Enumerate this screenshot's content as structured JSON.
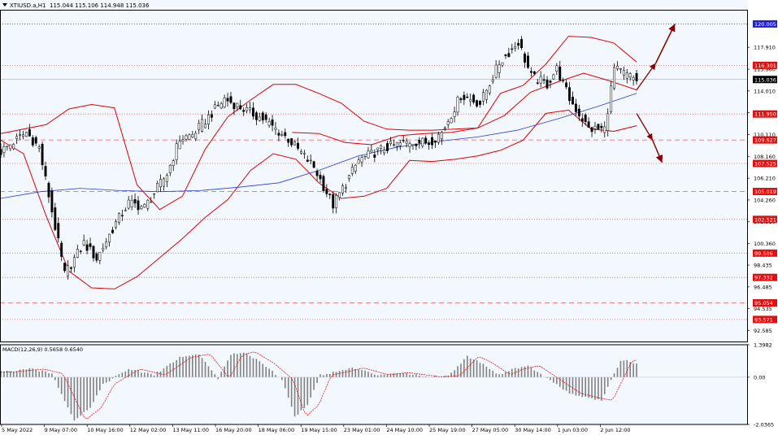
{
  "header": {
    "symbol": "XTIUSD.a,H1",
    "ohlc": "115.044 115.106 114.948 115.036"
  },
  "colors": {
    "background": "#f3f8fe",
    "frame": "#000000",
    "candles": "#000000",
    "bollinger": "#e00000",
    "moving_average": "#2a3bd6",
    "level_line": "#e06060",
    "arrow": "#8b0000",
    "current_price_tag": "#000000",
    "top_level_tag": "#2222cc",
    "level_tag": "#dd1111",
    "macd_hist": "#808080",
    "macd_signal": "#e00000"
  },
  "chart_data": [
    {
      "type": "candlestick",
      "title": "XTIUSD.a,H1",
      "ylim": [
        91.6,
        121.2
      ],
      "price_ticks": [
        "117.910",
        "115.960",
        "114.010",
        "112.060",
        "110.110",
        "108.160",
        "106.210",
        "104.260",
        "102.310",
        "100.360",
        "98.435",
        "96.485",
        "94.535",
        "92.585"
      ],
      "price_tick_values": [
        117.91,
        115.96,
        114.01,
        112.06,
        110.11,
        108.16,
        106.21,
        104.26,
        102.31,
        100.36,
        98.435,
        96.485,
        94.535,
        92.585
      ],
      "current_price": {
        "label": "115.036",
        "value": 115.036
      },
      "levels": [
        {
          "label": "120.005",
          "value": 120.005,
          "style": "dotted",
          "tag": "top"
        },
        {
          "label": "116.301",
          "value": 116.301,
          "style": "dotted",
          "tag": "level"
        },
        {
          "label": "111.950",
          "value": 111.95,
          "style": "dotted",
          "tag": "level"
        },
        {
          "label": "109.627",
          "value": 109.627,
          "style": "dashed",
          "tag": "level"
        },
        {
          "label": "107.525",
          "value": 107.525,
          "style": "dotted",
          "tag": "level"
        },
        {
          "label": "105.019",
          "value": 105.019,
          "style": "dashed",
          "tag": "level"
        },
        {
          "label": "102.521",
          "value": 102.521,
          "style": "dotted",
          "tag": "level"
        },
        {
          "label": "99.506",
          "value": 99.506,
          "style": "dotted",
          "tag": "level"
        },
        {
          "label": "97.332",
          "value": 97.332,
          "style": "dotted",
          "tag": "level"
        },
        {
          "label": "95.054",
          "value": 95.054,
          "style": "dashed",
          "tag": "level"
        },
        {
          "label": "93.571",
          "value": 93.571,
          "style": "dotted",
          "tag": "level"
        }
      ],
      "time_labels": [
        "5 May 2022",
        "9 May 07:00",
        "10 May 16:00",
        "12 May 02:00",
        "13 May 11:00",
        "16 May 20:00",
        "18 May 06:00",
        "19 May 15:00",
        "23 May 01:00",
        "24 May 10:00",
        "25 May 19:00",
        "27 May 05:00",
        "30 May 14:00",
        "1 Jun 03:00",
        "2 Jun 12:00"
      ],
      "bars": 200,
      "price_path_x": [
        0,
        8,
        12,
        20,
        26,
        30,
        36,
        40,
        45,
        52,
        56,
        60,
        70,
        82,
        90,
        98,
        104,
        112,
        120,
        128,
        134,
        138,
        144,
        150,
        156,
        162,
        166,
        171,
        174,
        178,
        184,
        189,
        192,
        199
      ],
      "price_path_y": [
        108.6,
        110.3,
        108.9,
        97.6,
        100.4,
        99.0,
        102.2,
        104.0,
        103.6,
        106.6,
        109.7,
        110.1,
        113.3,
        111.5,
        109.7,
        107.2,
        103.8,
        107.8,
        108.9,
        109.5,
        109.4,
        110.3,
        113.6,
        112.9,
        116.5,
        118.4,
        115.3,
        114.6,
        116.0,
        113.3,
        110.6,
        110.6,
        116.0,
        115.0
      ],
      "bollinger_upper": [
        110.2,
        110.6,
        111.0,
        112.4,
        112.8,
        112.5,
        105.6,
        103.4,
        104.6,
        108.8,
        111.7,
        113.2,
        114.6,
        114.6,
        113.8,
        112.9,
        111.3,
        110.6,
        110.5,
        110.5,
        110.6,
        110.7,
        113.8,
        114.5,
        116.4,
        118.9,
        118.8,
        118.3,
        116.6
      ],
      "bollinger_lower": [
        109.6,
        108.4,
        102.8,
        97.9,
        96.4,
        96.3,
        97.4,
        99.1,
        100.8,
        102.7,
        104.3,
        106.9,
        108.4,
        107.9,
        105.8,
        104.4,
        104.6,
        105.3,
        107.8,
        107.7,
        107.9,
        108.2,
        108.7,
        109.6,
        112.0,
        112.3,
        110.6,
        110.4,
        110.9
      ],
      "bollinger_mid": [
        null,
        null,
        null,
        null,
        null,
        null,
        null,
        null,
        null,
        null,
        null,
        110.3,
        110.2,
        109.4,
        109.2,
        110.0,
        110.2,
        110.3,
        110.7,
        111.8,
        113.9,
        114.8,
        115.6,
        114.9,
        114.1
      ],
      "moving_average": [
        104.4,
        105.0,
        105.3,
        105.1,
        105.0,
        105.1,
        105.4,
        105.8,
        106.9,
        108.2,
        109.0,
        109.5,
        109.9,
        110.5,
        111.5,
        112.6,
        113.8
      ],
      "scenario_arrows": [
        {
          "from": [
            199,
            114.1
          ],
          "to": [
            205,
            116.5
          ],
          "to_end": [
            211,
            120.0
          ]
        },
        {
          "from": [
            199,
            112.0
          ],
          "to": [
            204,
            109.6
          ],
          "to_end": [
            207,
            107.6
          ]
        }
      ]
    },
    {
      "type": "macd",
      "title": "MACD(12,26,9) 0.5658 0.6540",
      "ylim": [
        -2.0365,
        1.3982
      ],
      "ticks": [
        "1.3982",
        "0.00",
        "-2.0365"
      ],
      "tick_values": [
        1.3982,
        0,
        -2.0365
      ],
      "histogram_path_x": [
        0,
        10,
        16,
        20,
        23,
        28,
        32,
        40,
        48,
        56,
        62,
        68,
        72,
        76,
        82,
        88,
        92,
        96,
        100,
        104,
        110,
        118,
        124,
        134,
        140,
        146,
        150,
        156,
        160,
        165,
        171,
        178,
        184,
        188,
        194,
        196,
        199
      ],
      "histogram_path_y": [
        0.22,
        0.35,
        0.15,
        -1.0,
        -1.85,
        -1.3,
        -0.3,
        0.35,
        0.1,
        0.85,
        1.0,
        -0.05,
        0.95,
        1.1,
        0.6,
        -0.1,
        -1.7,
        -1.2,
        0.1,
        0.2,
        0.4,
        0.1,
        0.2,
        0.02,
        0.05,
        0.9,
        0.65,
        0.1,
        0.35,
        0.5,
        -0.05,
        -0.7,
        -0.9,
        -1.0,
        0.7,
        0.75,
        0.55
      ]
    }
  ]
}
